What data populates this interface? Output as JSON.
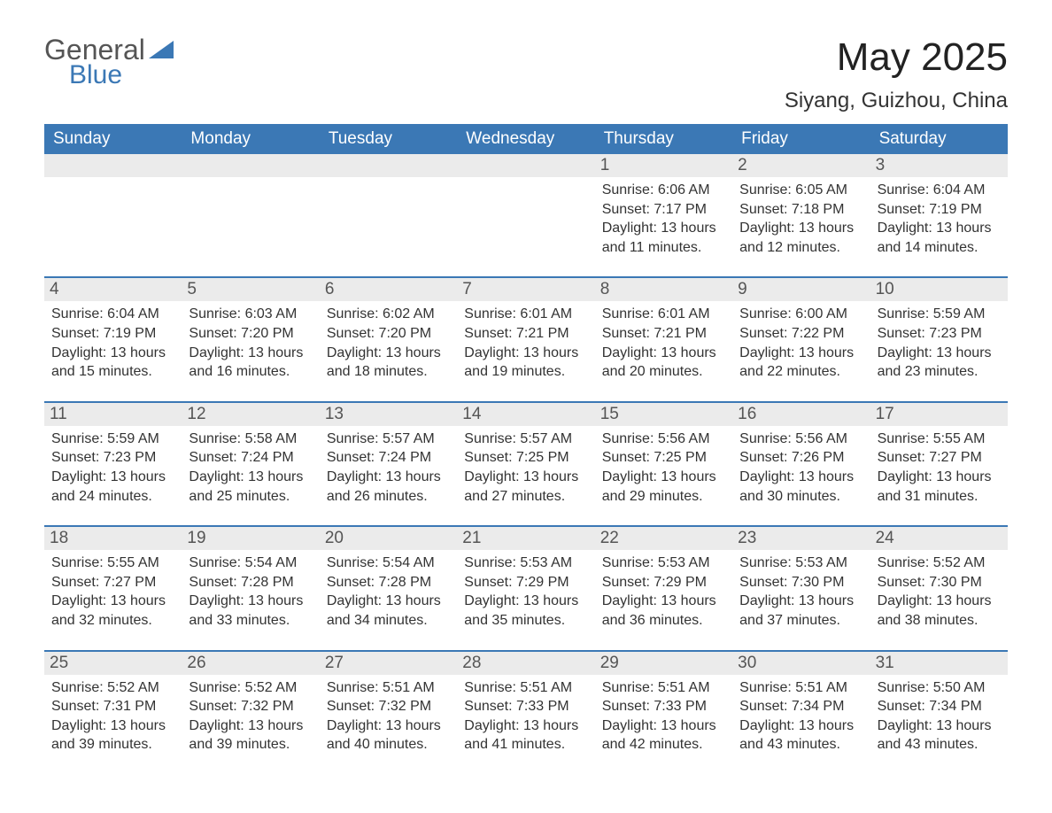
{
  "logo": {
    "text1": "General",
    "text2": "Blue"
  },
  "title": "May 2025",
  "location": "Siyang, Guizhou, China",
  "colors": {
    "header_bg": "#3b78b5",
    "header_text": "#ffffff",
    "daynum_bg": "#ebebeb",
    "daynum_text": "#555555",
    "body_text": "#333333",
    "week_border": "#3b78b5",
    "page_bg": "#ffffff",
    "logo_gray": "#555555",
    "logo_blue": "#3b78b5"
  },
  "typography": {
    "title_fontsize": 44,
    "location_fontsize": 24,
    "weekday_fontsize": 19,
    "daynum_fontsize": 19,
    "body_fontsize": 16,
    "font_family": "Arial"
  },
  "weekdays": [
    "Sunday",
    "Monday",
    "Tuesday",
    "Wednesday",
    "Thursday",
    "Friday",
    "Saturday"
  ],
  "labels": {
    "sunrise": "Sunrise:",
    "sunset": "Sunset:",
    "daylight": "Daylight:"
  },
  "weeks": [
    [
      null,
      null,
      null,
      null,
      {
        "n": "1",
        "sunrise": "6:06 AM",
        "sunset": "7:17 PM",
        "daylight": "13 hours and 11 minutes."
      },
      {
        "n": "2",
        "sunrise": "6:05 AM",
        "sunset": "7:18 PM",
        "daylight": "13 hours and 12 minutes."
      },
      {
        "n": "3",
        "sunrise": "6:04 AM",
        "sunset": "7:19 PM",
        "daylight": "13 hours and 14 minutes."
      }
    ],
    [
      {
        "n": "4",
        "sunrise": "6:04 AM",
        "sunset": "7:19 PM",
        "daylight": "13 hours and 15 minutes."
      },
      {
        "n": "5",
        "sunrise": "6:03 AM",
        "sunset": "7:20 PM",
        "daylight": "13 hours and 16 minutes."
      },
      {
        "n": "6",
        "sunrise": "6:02 AM",
        "sunset": "7:20 PM",
        "daylight": "13 hours and 18 minutes."
      },
      {
        "n": "7",
        "sunrise": "6:01 AM",
        "sunset": "7:21 PM",
        "daylight": "13 hours and 19 minutes."
      },
      {
        "n": "8",
        "sunrise": "6:01 AM",
        "sunset": "7:21 PM",
        "daylight": "13 hours and 20 minutes."
      },
      {
        "n": "9",
        "sunrise": "6:00 AM",
        "sunset": "7:22 PM",
        "daylight": "13 hours and 22 minutes."
      },
      {
        "n": "10",
        "sunrise": "5:59 AM",
        "sunset": "7:23 PM",
        "daylight": "13 hours and 23 minutes."
      }
    ],
    [
      {
        "n": "11",
        "sunrise": "5:59 AM",
        "sunset": "7:23 PM",
        "daylight": "13 hours and 24 minutes."
      },
      {
        "n": "12",
        "sunrise": "5:58 AM",
        "sunset": "7:24 PM",
        "daylight": "13 hours and 25 minutes."
      },
      {
        "n": "13",
        "sunrise": "5:57 AM",
        "sunset": "7:24 PM",
        "daylight": "13 hours and 26 minutes."
      },
      {
        "n": "14",
        "sunrise": "5:57 AM",
        "sunset": "7:25 PM",
        "daylight": "13 hours and 27 minutes."
      },
      {
        "n": "15",
        "sunrise": "5:56 AM",
        "sunset": "7:25 PM",
        "daylight": "13 hours and 29 minutes."
      },
      {
        "n": "16",
        "sunrise": "5:56 AM",
        "sunset": "7:26 PM",
        "daylight": "13 hours and 30 minutes."
      },
      {
        "n": "17",
        "sunrise": "5:55 AM",
        "sunset": "7:27 PM",
        "daylight": "13 hours and 31 minutes."
      }
    ],
    [
      {
        "n": "18",
        "sunrise": "5:55 AM",
        "sunset": "7:27 PM",
        "daylight": "13 hours and 32 minutes."
      },
      {
        "n": "19",
        "sunrise": "5:54 AM",
        "sunset": "7:28 PM",
        "daylight": "13 hours and 33 minutes."
      },
      {
        "n": "20",
        "sunrise": "5:54 AM",
        "sunset": "7:28 PM",
        "daylight": "13 hours and 34 minutes."
      },
      {
        "n": "21",
        "sunrise": "5:53 AM",
        "sunset": "7:29 PM",
        "daylight": "13 hours and 35 minutes."
      },
      {
        "n": "22",
        "sunrise": "5:53 AM",
        "sunset": "7:29 PM",
        "daylight": "13 hours and 36 minutes."
      },
      {
        "n": "23",
        "sunrise": "5:53 AM",
        "sunset": "7:30 PM",
        "daylight": "13 hours and 37 minutes."
      },
      {
        "n": "24",
        "sunrise": "5:52 AM",
        "sunset": "7:30 PM",
        "daylight": "13 hours and 38 minutes."
      }
    ],
    [
      {
        "n": "25",
        "sunrise": "5:52 AM",
        "sunset": "7:31 PM",
        "daylight": "13 hours and 39 minutes."
      },
      {
        "n": "26",
        "sunrise": "5:52 AM",
        "sunset": "7:32 PM",
        "daylight": "13 hours and 39 minutes."
      },
      {
        "n": "27",
        "sunrise": "5:51 AM",
        "sunset": "7:32 PM",
        "daylight": "13 hours and 40 minutes."
      },
      {
        "n": "28",
        "sunrise": "5:51 AM",
        "sunset": "7:33 PM",
        "daylight": "13 hours and 41 minutes."
      },
      {
        "n": "29",
        "sunrise": "5:51 AM",
        "sunset": "7:33 PM",
        "daylight": "13 hours and 42 minutes."
      },
      {
        "n": "30",
        "sunrise": "5:51 AM",
        "sunset": "7:34 PM",
        "daylight": "13 hours and 43 minutes."
      },
      {
        "n": "31",
        "sunrise": "5:50 AM",
        "sunset": "7:34 PM",
        "daylight": "13 hours and 43 minutes."
      }
    ]
  ]
}
